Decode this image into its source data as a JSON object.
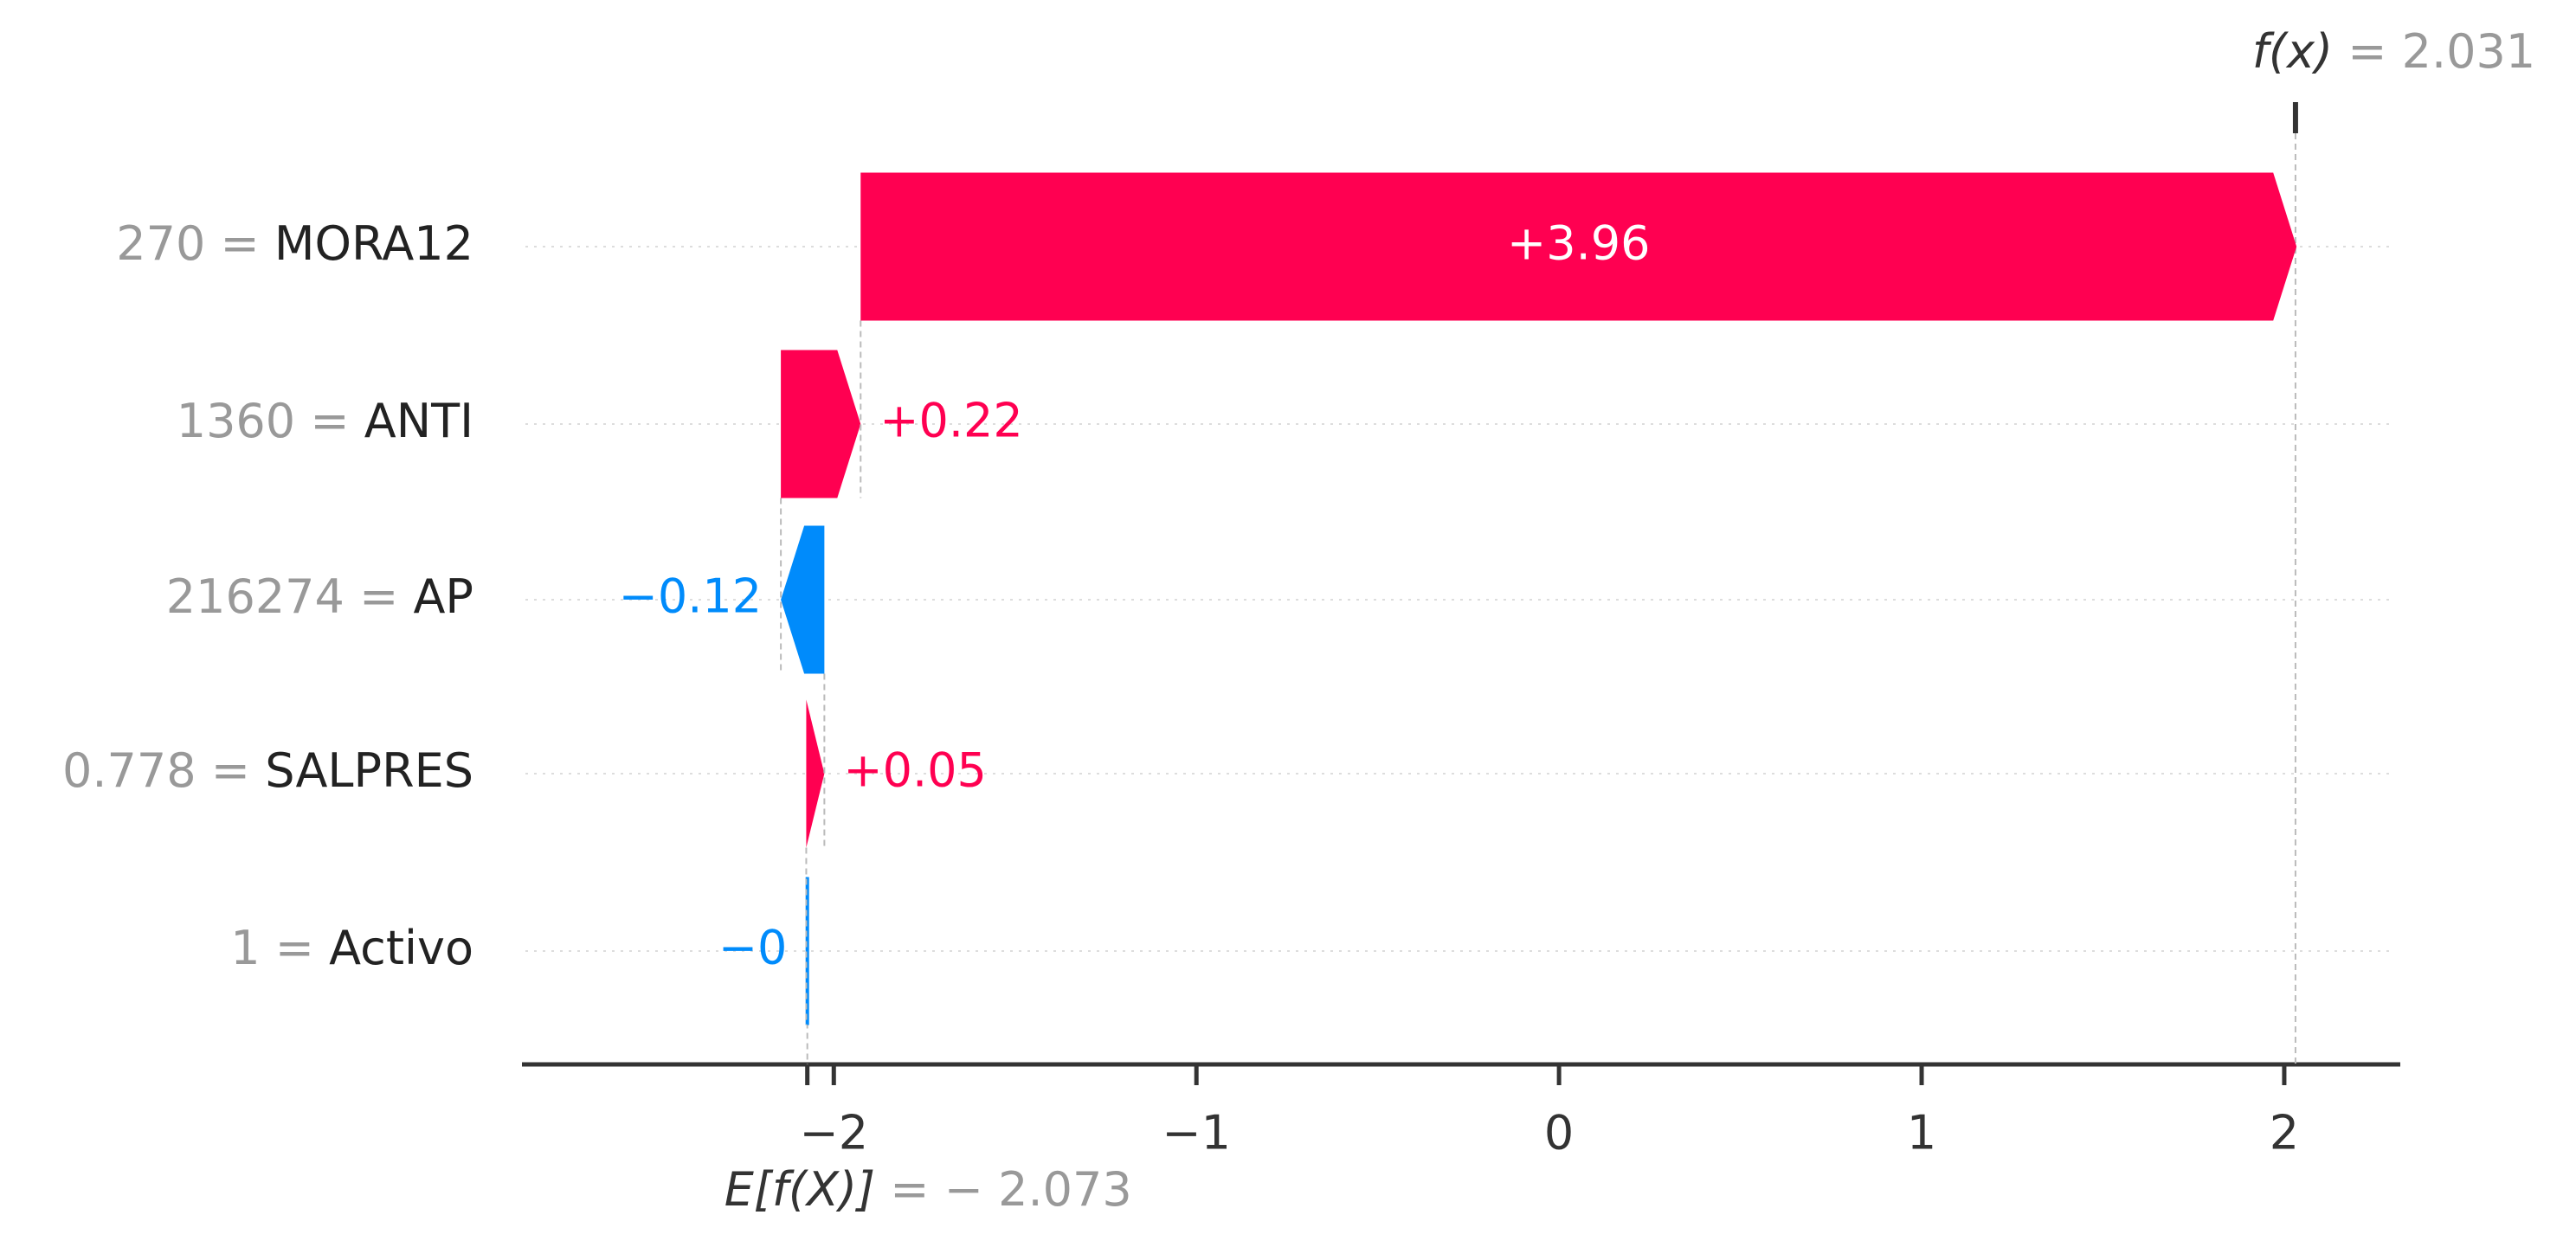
{
  "chart_data": {
    "type": "waterfall",
    "categories": [
      "MORA12",
      "ANTI",
      "AP",
      "SALPRES",
      "Activo"
    ],
    "feature_values": [
      "270",
      "1360",
      "216274",
      "0.778",
      "1"
    ],
    "separator": "=",
    "values": [
      3.96,
      0.22,
      -0.12,
      0.05,
      -0.003
    ],
    "value_labels": [
      "+3.96",
      "+0.22",
      "−0.12",
      "+0.05",
      "−0"
    ],
    "positive_color": "#ff0051",
    "negative_color": "#008bfb",
    "base": {
      "name": "E[f(X)]",
      "value": -2.073,
      "label": "− 2.073"
    },
    "output": {
      "name": "f(x)",
      "value": 2.031,
      "label": "2.031"
    },
    "xlim": [
      -2.86,
      2.32
    ],
    "xticks": [
      {
        "value": -2,
        "label": "−2"
      },
      {
        "value": -1,
        "label": "−1"
      },
      0,
      1,
      2
    ]
  }
}
